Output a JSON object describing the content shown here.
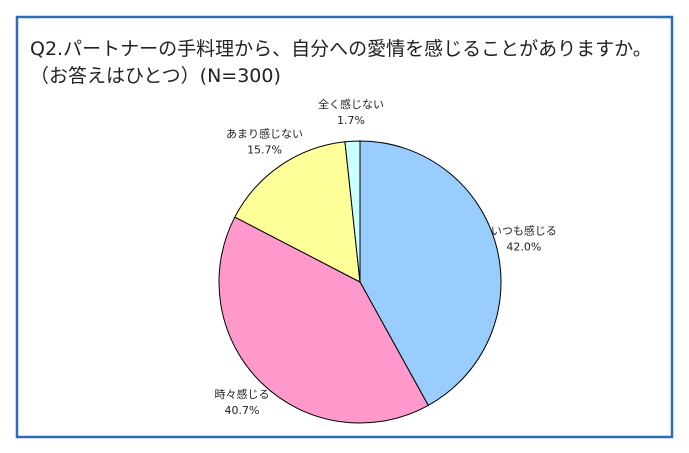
{
  "chart_data": {
    "type": "pie",
    "title": "Q2.パートナーの手料理から、自分への愛情を感じることがありますか。",
    "subtitle": "（お答えはひとつ）(N=300)",
    "categories": [
      "いつも感じる",
      "時々感じる",
      "あまり感じない",
      "全く感じない"
    ],
    "values": [
      42.0,
      40.7,
      15.7,
      1.7
    ],
    "value_labels": [
      "42.0%",
      "40.7%",
      "15.7%",
      "1.7%"
    ],
    "colors": [
      "#99ccff",
      "#ff99cc",
      "#ffff99",
      "#ccffff"
    ]
  }
}
